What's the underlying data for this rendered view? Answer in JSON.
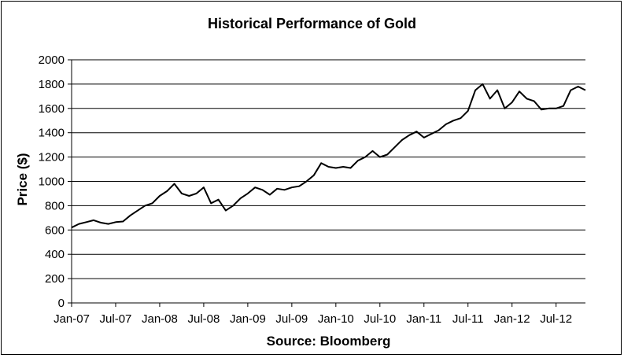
{
  "chart_data": {
    "type": "line",
    "title": "Historical Performance of Gold",
    "xlabel": "Source: Bloomberg",
    "ylabel": "Price ($)",
    "ylim": [
      0,
      2000
    ],
    "y_ticks": [
      0,
      200,
      400,
      600,
      800,
      1000,
      1200,
      1400,
      1600,
      1800,
      2000
    ],
    "x_ticks": [
      "Jan-07",
      "Jul-07",
      "Jan-08",
      "Jul-08",
      "Jan-09",
      "Jul-09",
      "Jan-10",
      "Jul-10",
      "Jan-11",
      "Jul-11",
      "Jan-12",
      "Jul-12"
    ],
    "x_range": [
      "2007-01",
      "2012-11"
    ],
    "grid": "horizontal",
    "legend": "none",
    "line_color": "#000000",
    "series": [
      {
        "x": [
          "2007-01",
          "2007-02",
          "2007-03",
          "2007-04",
          "2007-05",
          "2007-06",
          "2007-07",
          "2007-08",
          "2007-09",
          "2007-10",
          "2007-11",
          "2007-12",
          "2008-01",
          "2008-02",
          "2008-03",
          "2008-04",
          "2008-05",
          "2008-06",
          "2008-07",
          "2008-08",
          "2008-09",
          "2008-10",
          "2008-11",
          "2008-12",
          "2009-01",
          "2009-02",
          "2009-03",
          "2009-04",
          "2009-05",
          "2009-06",
          "2009-07",
          "2009-08",
          "2009-09",
          "2009-10",
          "2009-11",
          "2009-12",
          "2010-01",
          "2010-02",
          "2010-03",
          "2010-04",
          "2010-05",
          "2010-06",
          "2010-07",
          "2010-08",
          "2010-09",
          "2010-10",
          "2010-11",
          "2010-12",
          "2011-01",
          "2011-02",
          "2011-03",
          "2011-04",
          "2011-05",
          "2011-06",
          "2011-07",
          "2011-08",
          "2011-09",
          "2011-10",
          "2011-11",
          "2011-12",
          "2012-01",
          "2012-02",
          "2012-03",
          "2012-04",
          "2012-05",
          "2012-06",
          "2012-07",
          "2012-08",
          "2012-09",
          "2012-10",
          "2012-11"
        ],
        "values": [
          620,
          650,
          665,
          680,
          660,
          650,
          665,
          670,
          720,
          760,
          800,
          820,
          880,
          920,
          980,
          900,
          880,
          900,
          950,
          820,
          850,
          760,
          800,
          860,
          900,
          950,
          930,
          890,
          940,
          930,
          950,
          960,
          1000,
          1050,
          1150,
          1120,
          1110,
          1120,
          1110,
          1170,
          1200,
          1250,
          1200,
          1220,
          1280,
          1340,
          1380,
          1410,
          1360,
          1390,
          1420,
          1470,
          1500,
          1520,
          1580,
          1750,
          1800,
          1680,
          1750,
          1600,
          1650,
          1740,
          1680,
          1660,
          1590,
          1600,
          1600,
          1620,
          1750,
          1780,
          1750
        ]
      }
    ]
  }
}
